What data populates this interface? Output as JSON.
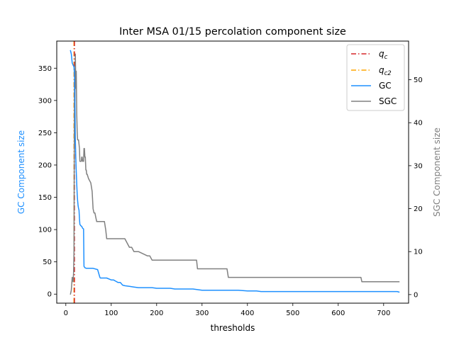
{
  "chart_data": {
    "type": "line",
    "title": "Inter MSA 01/15 percolation component size",
    "xlabel": "thresholds",
    "ylabel_left": "GC Component size",
    "ylabel_right": "SGC Component size",
    "xlim": [
      -20,
      755
    ],
    "ylim_left": [
      -14,
      392
    ],
    "ylim_right": [
      -2,
      59
    ],
    "xticks": [
      0,
      100,
      200,
      300,
      400,
      500,
      600,
      700
    ],
    "yticks_left": [
      0,
      50,
      100,
      150,
      200,
      250,
      300,
      350
    ],
    "yticks_right": [
      0,
      10,
      20,
      30,
      40,
      50
    ],
    "grid": false,
    "legend_position": "top-right",
    "colors": {
      "q_c": "#d62728",
      "q_c2": "#ffa500",
      "GC": "#1e90ff",
      "SGC": "#808080",
      "left_axis_label": "#1e90ff",
      "right_axis_label": "#808080"
    },
    "vlines": [
      {
        "name": "q_c",
        "legend_label": "q",
        "legend_sub": "c",
        "x": 19
      },
      {
        "name": "q_c2",
        "legend_label": "q",
        "legend_sub": "c2",
        "x": 18
      }
    ],
    "series": [
      {
        "name": "GC",
        "axis": "left",
        "x": [
          10,
          12,
          14,
          16,
          18,
          19,
          20,
          21,
          22,
          23,
          24,
          25,
          26,
          27,
          28,
          29,
          30,
          31,
          33,
          35,
          37,
          39,
          40,
          42,
          45,
          50,
          55,
          60,
          70,
          75,
          76,
          80,
          90,
          100,
          105,
          110,
          115,
          120,
          125,
          130,
          140,
          150,
          160,
          180,
          190,
          200,
          230,
          240,
          280,
          290,
          300,
          350,
          380,
          400,
          420,
          430,
          450,
          500,
          700,
          730,
          735
        ],
        "y": [
          378,
          372,
          358,
          355,
          352,
          340,
          300,
          240,
          210,
          190,
          170,
          155,
          145,
          137,
          133,
          130,
          117,
          108,
          106,
          105,
          102,
          101,
          43,
          41,
          40,
          40,
          40,
          40,
          38,
          26,
          25,
          25,
          25,
          22,
          22,
          20,
          18,
          18,
          14,
          13,
          12,
          11,
          10,
          10,
          10,
          9,
          9,
          8,
          8,
          7,
          6,
          6,
          6,
          5,
          5,
          4,
          4,
          4,
          4,
          4,
          3
        ]
      },
      {
        "name": "SGC",
        "axis": "right",
        "x": [
          10,
          12,
          14,
          16,
          17,
          18,
          19,
          20,
          21,
          22,
          23,
          24,
          25,
          26,
          27,
          28,
          29,
          30,
          31,
          32,
          33,
          34,
          35,
          36,
          37,
          38,
          39,
          40,
          41,
          42,
          43,
          44,
          45,
          46,
          47,
          50,
          55,
          58,
          60,
          62,
          64,
          66,
          68,
          70,
          75,
          80,
          85,
          88,
          90,
          95,
          100,
          110,
          120,
          125,
          130,
          140,
          145,
          150,
          160,
          180,
          185,
          190,
          200,
          230,
          240,
          260,
          280,
          288,
          290,
          300,
          340,
          355,
          358,
          380,
          400,
          500,
          600,
          650,
          652,
          700,
          735
        ],
        "y": [
          0,
          1,
          4,
          3,
          5,
          10,
          50,
          45,
          56,
          48,
          52,
          42,
          38,
          36,
          36,
          36,
          35,
          34,
          31,
          31,
          31,
          31,
          32,
          32,
          31,
          31,
          31,
          34,
          34,
          32,
          32,
          29,
          29,
          28,
          28,
          27,
          26,
          24,
          20,
          19,
          19,
          18,
          17,
          17,
          17,
          17,
          17,
          15,
          13,
          13,
          13,
          13,
          13,
          13,
          13,
          11,
          11,
          10,
          10,
          9,
          9,
          8,
          8,
          8,
          8,
          8,
          8,
          8,
          6,
          6,
          6,
          6,
          4,
          4,
          4,
          4,
          4,
          4,
          3,
          3,
          3
        ]
      }
    ]
  }
}
